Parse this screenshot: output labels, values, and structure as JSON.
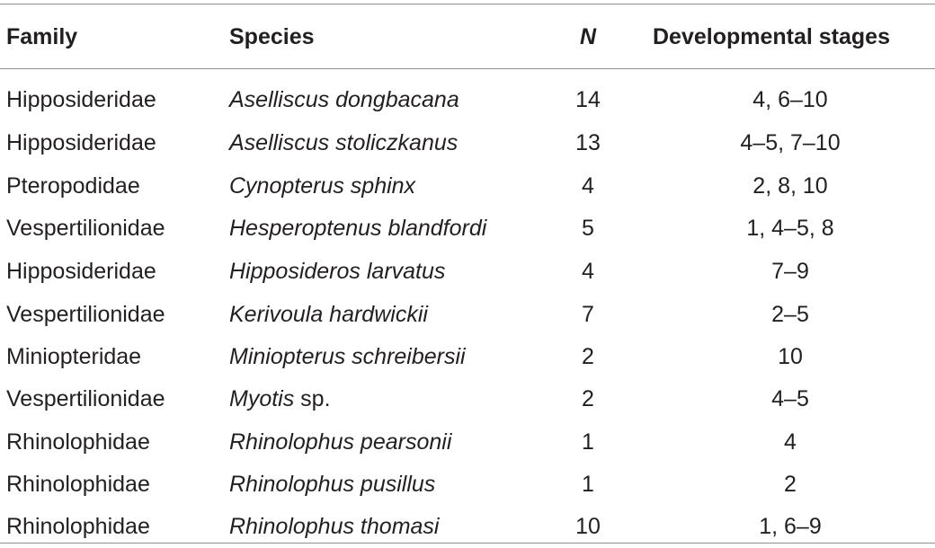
{
  "table": {
    "headers": {
      "family": "Family",
      "species": "Species",
      "n": "N",
      "stages": "Developmental stages"
    },
    "rows": [
      {
        "family": "Hipposideridae",
        "species": "Aselliscus dongbacana",
        "species_suffix": "",
        "n": "14",
        "stages": "4, 6–10"
      },
      {
        "family": "Hipposideridae",
        "species": "Aselliscus stoliczkanus",
        "species_suffix": "",
        "n": "13",
        "stages": "4–5, 7–10"
      },
      {
        "family": "Pteropodidae",
        "species": "Cynopterus sphinx",
        "species_suffix": "",
        "n": "4",
        "stages": "2, 8, 10"
      },
      {
        "family": "Vespertilionidae",
        "species": "Hesperoptenus blandfordi",
        "species_suffix": "",
        "n": "5",
        "stages": "1, 4–5, 8"
      },
      {
        "family": "Hipposideridae",
        "species": "Hipposideros larvatus",
        "species_suffix": "",
        "n": "4",
        "stages": "7–9"
      },
      {
        "family": "Vespertilionidae",
        "species": "Kerivoula hardwickii",
        "species_suffix": "",
        "n": "7",
        "stages": "2–5"
      },
      {
        "family": "Miniopteridae",
        "species": "Miniopterus schreibersii",
        "species_suffix": "",
        "n": "2",
        "stages": "10"
      },
      {
        "family": "Vespertilionidae",
        "species": "Myotis",
        "species_suffix": " sp.",
        "n": "2",
        "stages": "4–5"
      },
      {
        "family": "Rhinolophidae",
        "species": "Rhinolophus pearsonii",
        "species_suffix": "",
        "n": "1",
        "stages": "4"
      },
      {
        "family": "Rhinolophidae",
        "species": "Rhinolophus pusillus",
        "species_suffix": "",
        "n": "1",
        "stages": "2"
      },
      {
        "family": "Rhinolophidae",
        "species": "Rhinolophus thomasi",
        "species_suffix": "",
        "n": "10",
        "stages": "1, 6–9"
      }
    ]
  }
}
